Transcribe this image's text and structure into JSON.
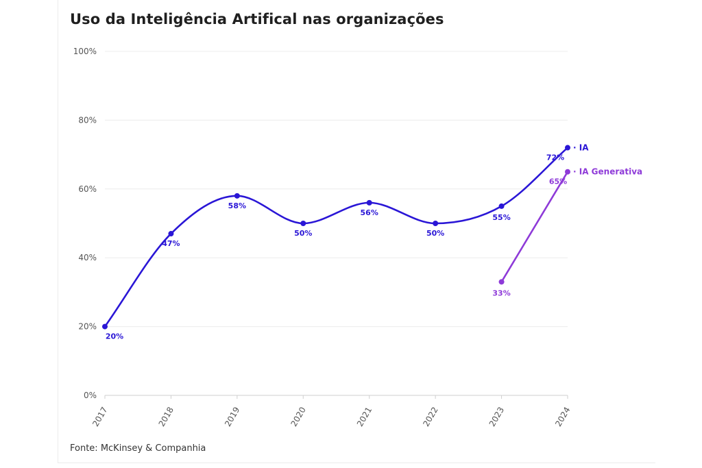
{
  "title": "Uso da Inteligência Artifical nas organizações",
  "source": "Fonte: McKinsey & Companhia",
  "chart_data": {
    "type": "line",
    "x": [
      "2017",
      "2018",
      "2019",
      "2020",
      "2021",
      "2022",
      "2023",
      "2024"
    ],
    "ylim": [
      0,
      100
    ],
    "yticks": [
      0,
      20,
      40,
      60,
      80,
      100
    ],
    "ytick_labels": [
      "0%",
      "20%",
      "40%",
      "60%",
      "80%",
      "100%"
    ],
    "grid": true,
    "legend_placement": "right of line ends",
    "series": [
      {
        "name": "IA",
        "legend_label": "· IA",
        "color": "#2a16d6",
        "values": [
          20,
          47,
          58,
          50,
          56,
          50,
          55,
          72
        ],
        "labels": [
          "20%",
          "47%",
          "58%",
          "50%",
          "56%",
          "50%",
          "55%",
          "72%"
        ]
      },
      {
        "name": "IA Generativa",
        "legend_label": "· IA Generativa",
        "color": "#8e3ad8",
        "values": [
          null,
          null,
          null,
          null,
          null,
          null,
          33,
          65
        ],
        "labels": [
          "",
          "",
          "",
          "",
          "",
          "",
          "33%",
          "65%"
        ]
      }
    ]
  }
}
